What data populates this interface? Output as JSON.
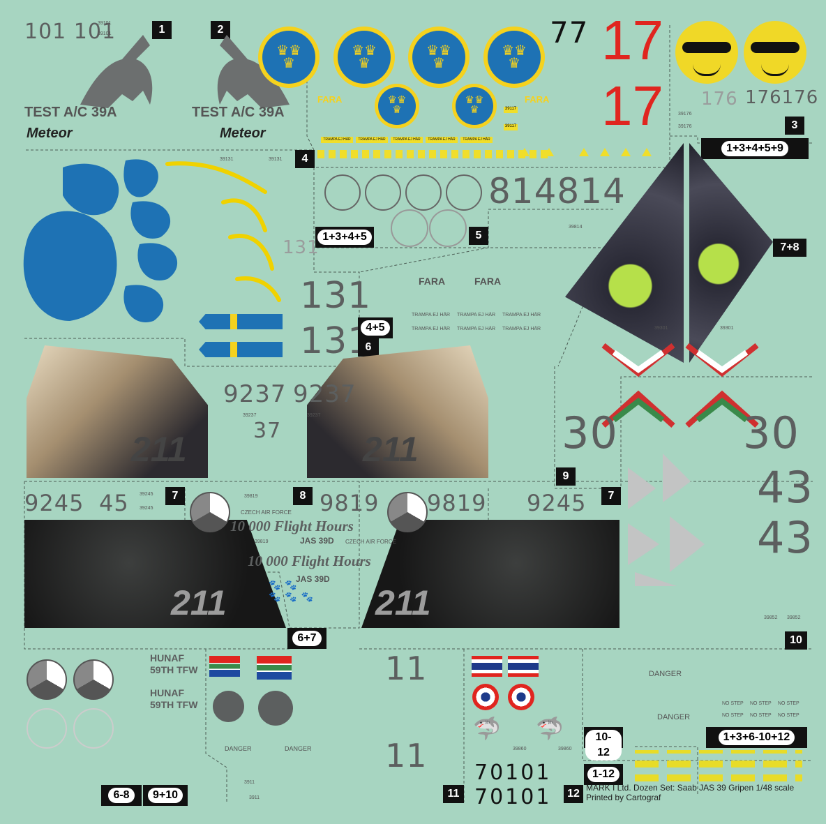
{
  "badges": {
    "b1": "1",
    "b2": "2",
    "b3": "3",
    "b4": "4",
    "b5": "5",
    "b6": "6",
    "b7a": "7",
    "b7b": "7",
    "b8": "8",
    "b9": "9",
    "b10": "10",
    "b11": "11",
    "b12": "12",
    "b1_3_4_5_9": "1+3+4+5+9",
    "b1_3_4_5": "1+3+4+5",
    "b7_8": "7+8",
    "b4_5": "4+5",
    "b6_7": "6+7",
    "b6_8": "6-8",
    "b9_10": "9+10",
    "b10_12": "10-12",
    "b1_12": "1-12",
    "b1_3_6_10_12": "1+3+6-10+12"
  },
  "sec1": {
    "large": "101 101",
    "small": "39101",
    "test_a": "TEST A/C 39A",
    "test_b": "TEST A/C 39A",
    "meteor_a": "Meteor",
    "meteor_b": "Meteor"
  },
  "sec2": {
    "fara_a": "FARA",
    "fara_b": "FARA",
    "n77": "77",
    "n17a": "17",
    "n17b": "17",
    "s39117a": "39117",
    "s39117b": "39117",
    "trampa": "TRAMPA EJ HÄR"
  },
  "sec3": {
    "n176a": "176",
    "n176b": "176176",
    "s39176a": "39176",
    "s39176b": "39176"
  },
  "sec4": {
    "s39131a": "39131",
    "s39131b": "39131",
    "n131_light": "131",
    "n131a": "131",
    "n131b": "131"
  },
  "sec5": {
    "n814": "814814",
    "s39814": "39814",
    "fara_a": "FARA",
    "fara_b": "FARA",
    "trampa": "TRAMPA EJ HÄR"
  },
  "sec6": {
    "n9237a": "9237",
    "n9237b": "9237",
    "n37": "37",
    "s39237a": "39237",
    "s39237b": "39237",
    "tail": "211"
  },
  "sec7": {
    "n9245": "9245",
    "n45": "45",
    "s39245a": "39245",
    "s39245b": "39245",
    "n9245b": "9245",
    "tail": "211"
  },
  "sec8": {
    "s39819a": "39819",
    "s39819b": "39819",
    "n9819a": "9819",
    "n9819b": "9819",
    "czech_a": "CZECH AIR FORCE",
    "czech_b": "CZECH AIR FORCE",
    "flight_a": "10 000 Flight Hours",
    "flight_b": "10 000 Flight Hours",
    "jas_a": "JAS 39D",
    "jas_b": "JAS 39D"
  },
  "sec9": {
    "s39301a": "39301",
    "s39301b": "39301",
    "n30a": "30",
    "n30b": "30",
    "n43a": "43",
    "n43b": "43",
    "s39852a": "39852",
    "s39852b": "39852"
  },
  "sec10": {
    "danger_a": "DANGER",
    "danger_b": "DANGER",
    "nostep": "NO STEP"
  },
  "sec11": {
    "hunaf_a": "HUNAF",
    "tfw_a": "59TH TFW",
    "hunaf_b": "HUNAF",
    "tfw_b": "59TH TFW",
    "n11a": "11",
    "n11b": "11",
    "danger_a": "DANGER",
    "danger_b": "DANGER",
    "s3911a": "3911",
    "s3911b": "3911"
  },
  "sec12": {
    "s39860a": "39860",
    "s39860b": "39860",
    "n70101a": "70101",
    "n70101b": "70101"
  },
  "footer": {
    "line1": "MARK I Ltd. Dozen Set: Saab JAS 39 Gripen 1/48 scale",
    "line2": "Printed by Cartograf"
  },
  "colors": {
    "background": "#a7d5c1",
    "sweden_blue": "#1e72b4",
    "sweden_yellow": "#f5d21e",
    "red": "#e0251f",
    "hun_green": "#3a8a4a",
    "grey_text": "#5c5f5f"
  }
}
